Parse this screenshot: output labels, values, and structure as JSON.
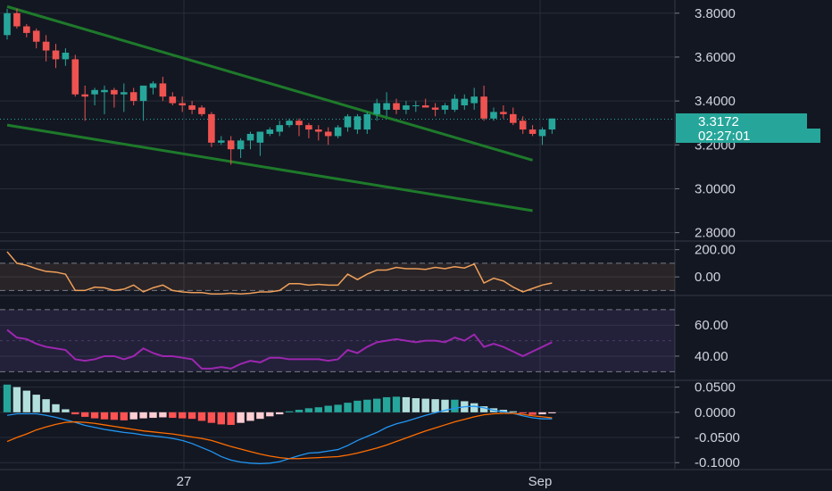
{
  "colors": {
    "background": "#131722",
    "grid": "#2a2e39",
    "up": "#26a69a",
    "down": "#ef5350",
    "trendline": "#1e7a2a",
    "cci": "#f0a05a",
    "rsi": "#9c27b0",
    "macd": "#2196f3",
    "signal": "#ff6d00",
    "badge": "#26a69a"
  },
  "price_badge": {
    "price": "3.3172",
    "countdown": "02:27:01"
  },
  "time_axis": {
    "labels": [
      "27",
      "Sep"
    ]
  },
  "chart_data": [
    {
      "type": "candlestick",
      "yticks": [
        "3.8000",
        "3.6000",
        "3.4000",
        "3.2000",
        "3.0000",
        "2.8000"
      ],
      "ylim": [
        2.77,
        3.86
      ],
      "last_price": 3.3172,
      "trendlines": [
        {
          "start": [
            0,
            3.83
          ],
          "end": [
            54,
            3.13
          ]
        },
        {
          "start": [
            0,
            3.29
          ],
          "end": [
            54,
            2.9
          ]
        }
      ],
      "candles": [
        [
          3.7,
          3.82,
          3.68,
          3.8
        ],
        [
          3.8,
          3.82,
          3.73,
          3.74
        ],
        [
          3.74,
          3.75,
          3.69,
          3.71
        ],
        [
          3.72,
          3.73,
          3.64,
          3.67
        ],
        [
          3.67,
          3.7,
          3.58,
          3.63
        ],
        [
          3.63,
          3.66,
          3.55,
          3.59
        ],
        [
          3.59,
          3.64,
          3.56,
          3.62
        ],
        [
          3.59,
          3.61,
          3.42,
          3.43
        ],
        [
          3.43,
          3.47,
          3.31,
          3.42
        ],
        [
          3.43,
          3.46,
          3.38,
          3.45
        ],
        [
          3.44,
          3.47,
          3.34,
          3.45
        ],
        [
          3.45,
          3.46,
          3.37,
          3.43
        ],
        [
          3.43,
          3.48,
          3.35,
          3.44
        ],
        [
          3.44,
          3.46,
          3.38,
          3.4
        ],
        [
          3.4,
          3.47,
          3.31,
          3.47
        ],
        [
          3.46,
          3.49,
          3.43,
          3.48
        ],
        [
          3.48,
          3.51,
          3.4,
          3.42
        ],
        [
          3.42,
          3.44,
          3.38,
          3.39
        ],
        [
          3.39,
          3.42,
          3.35,
          3.38
        ],
        [
          3.38,
          3.4,
          3.34,
          3.36
        ],
        [
          3.37,
          3.38,
          3.33,
          3.34
        ],
        [
          3.34,
          3.35,
          3.19,
          3.21
        ],
        [
          3.21,
          3.24,
          3.2,
          3.22
        ],
        [
          3.22,
          3.24,
          3.11,
          3.18
        ],
        [
          3.18,
          3.23,
          3.14,
          3.22
        ],
        [
          3.22,
          3.26,
          3.18,
          3.25
        ],
        [
          3.21,
          3.26,
          3.15,
          3.26
        ],
        [
          3.25,
          3.28,
          3.24,
          3.27
        ],
        [
          3.26,
          3.31,
          3.24,
          3.29
        ],
        [
          3.29,
          3.32,
          3.28,
          3.31
        ],
        [
          3.31,
          3.32,
          3.24,
          3.29
        ],
        [
          3.29,
          3.3,
          3.23,
          3.27
        ],
        [
          3.27,
          3.29,
          3.22,
          3.26
        ],
        [
          3.26,
          3.28,
          3.2,
          3.24
        ],
        [
          3.24,
          3.29,
          3.23,
          3.28
        ],
        [
          3.28,
          3.34,
          3.26,
          3.33
        ],
        [
          3.27,
          3.34,
          3.25,
          3.33
        ],
        [
          3.27,
          3.35,
          3.25,
          3.34
        ],
        [
          3.34,
          3.41,
          3.31,
          3.39
        ],
        [
          3.36,
          3.44,
          3.33,
          3.39
        ],
        [
          3.39,
          3.41,
          3.34,
          3.36
        ],
        [
          3.36,
          3.4,
          3.34,
          3.38
        ],
        [
          3.38,
          3.4,
          3.35,
          3.38
        ],
        [
          3.38,
          3.41,
          3.37,
          3.37
        ],
        [
          3.37,
          3.39,
          3.33,
          3.36
        ],
        [
          3.36,
          3.39,
          3.34,
          3.38
        ],
        [
          3.36,
          3.43,
          3.35,
          3.41
        ],
        [
          3.38,
          3.43,
          3.36,
          3.41
        ],
        [
          3.39,
          3.46,
          3.36,
          3.42
        ],
        [
          3.42,
          3.47,
          3.31,
          3.32
        ],
        [
          3.32,
          3.37,
          3.31,
          3.35
        ],
        [
          3.35,
          3.38,
          3.32,
          3.34
        ],
        [
          3.34,
          3.37,
          3.29,
          3.3
        ],
        [
          3.31,
          3.33,
          3.25,
          3.27
        ],
        [
          3.27,
          3.29,
          3.24,
          3.25
        ],
        [
          3.24,
          3.28,
          3.2,
          3.27
        ],
        [
          3.27,
          3.32,
          3.25,
          3.32
        ]
      ]
    },
    {
      "type": "line",
      "yticks": [
        "200.00",
        "0.00"
      ],
      "ylim": [
        -130,
        250
      ],
      "bands": [
        100,
        -100
      ],
      "series": [
        {
          "values": [
            185,
            100,
            85,
            60,
            40,
            35,
            20,
            -100,
            -100,
            -75,
            -80,
            -100,
            -90,
            -60,
            -110,
            -80,
            -60,
            -100,
            -110,
            -115,
            -115,
            -125,
            -125,
            -120,
            -125,
            -120,
            -110,
            -110,
            -100,
            -50,
            -50,
            -60,
            -55,
            -60,
            -60,
            20,
            -20,
            20,
            50,
            50,
            70,
            60,
            60,
            55,
            70,
            60,
            75,
            65,
            95,
            -45,
            -10,
            -30,
            -75,
            -110,
            -85,
            -60,
            -45
          ]
        }
      ]
    },
    {
      "type": "line",
      "yticks": [
        "60.00",
        "40.00"
      ],
      "ylim": [
        25,
        78
      ],
      "bands": [
        70,
        30
      ],
      "series": [
        {
          "values": [
            57,
            52,
            51,
            48,
            46,
            45,
            44,
            38,
            37,
            38,
            40,
            40,
            38,
            40,
            45,
            42,
            40,
            40,
            39,
            38,
            32,
            32,
            33,
            32,
            35,
            37,
            36,
            39,
            39,
            38,
            38,
            38,
            38,
            37,
            38,
            44,
            42,
            46,
            49,
            50,
            51,
            50,
            49,
            50,
            50,
            49,
            52,
            50,
            54,
            46,
            48,
            46,
            43,
            40,
            43,
            46,
            49
          ]
        }
      ]
    },
    {
      "type": "bar",
      "yticks": [
        "0.0500",
        "0.0000",
        "-0.0500",
        "-0.1000"
      ],
      "ylim": [
        -0.112,
        0.06
      ],
      "histogram": [
        0.055,
        0.05,
        0.043,
        0.035,
        0.026,
        0.016,
        0.006,
        -0.004,
        -0.009,
        -0.012,
        -0.014,
        -0.015,
        -0.016,
        -0.014,
        -0.012,
        -0.011,
        -0.01,
        -0.011,
        -0.012,
        -0.013,
        -0.017,
        -0.021,
        -0.024,
        -0.025,
        -0.021,
        -0.017,
        -0.013,
        -0.008,
        -0.004,
        0.002,
        0.005,
        0.008,
        0.01,
        0.013,
        0.015,
        0.019,
        0.023,
        0.025,
        0.027,
        0.03,
        0.031,
        0.03,
        0.028,
        0.027,
        0.026,
        0.025,
        0.025,
        0.022,
        0.018,
        0.012,
        0.008,
        0.005,
        0.002,
        -0.002,
        -0.005,
        -0.004,
        -0.002
      ],
      "series": [
        {
          "values": [
            -0.006,
            -0.003,
            -0.003,
            -0.003,
            -0.006,
            -0.01,
            -0.015,
            -0.02,
            -0.026,
            -0.03,
            -0.034,
            -0.037,
            -0.04,
            -0.042,
            -0.045,
            -0.047,
            -0.049,
            -0.052,
            -0.056,
            -0.062,
            -0.07,
            -0.078,
            -0.088,
            -0.095,
            -0.099,
            -0.101,
            -0.102,
            -0.101,
            -0.098,
            -0.092,
            -0.086,
            -0.081,
            -0.08,
            -0.077,
            -0.074,
            -0.066,
            -0.056,
            -0.048,
            -0.04,
            -0.03,
            -0.023,
            -0.018,
            -0.012,
            -0.006,
            -0.001,
            0.004,
            0.008,
            0.011,
            0.012,
            0.009,
            0.004,
            0.001,
            -0.002,
            -0.007,
            -0.011,
            -0.013,
            -0.013
          ]
        },
        {
          "values": [
            -0.058,
            -0.05,
            -0.043,
            -0.035,
            -0.029,
            -0.024,
            -0.02,
            -0.019,
            -0.02,
            -0.022,
            -0.025,
            -0.028,
            -0.031,
            -0.034,
            -0.037,
            -0.039,
            -0.041,
            -0.043,
            -0.046,
            -0.049,
            -0.052,
            -0.056,
            -0.062,
            -0.068,
            -0.073,
            -0.078,
            -0.083,
            -0.087,
            -0.09,
            -0.092,
            -0.092,
            -0.091,
            -0.09,
            -0.089,
            -0.088,
            -0.085,
            -0.081,
            -0.076,
            -0.071,
            -0.065,
            -0.058,
            -0.051,
            -0.044,
            -0.037,
            -0.031,
            -0.025,
            -0.019,
            -0.014,
            -0.009,
            -0.005,
            -0.003,
            -0.002,
            -0.002,
            -0.004,
            -0.007,
            -0.009,
            -0.011
          ]
        }
      ]
    }
  ]
}
